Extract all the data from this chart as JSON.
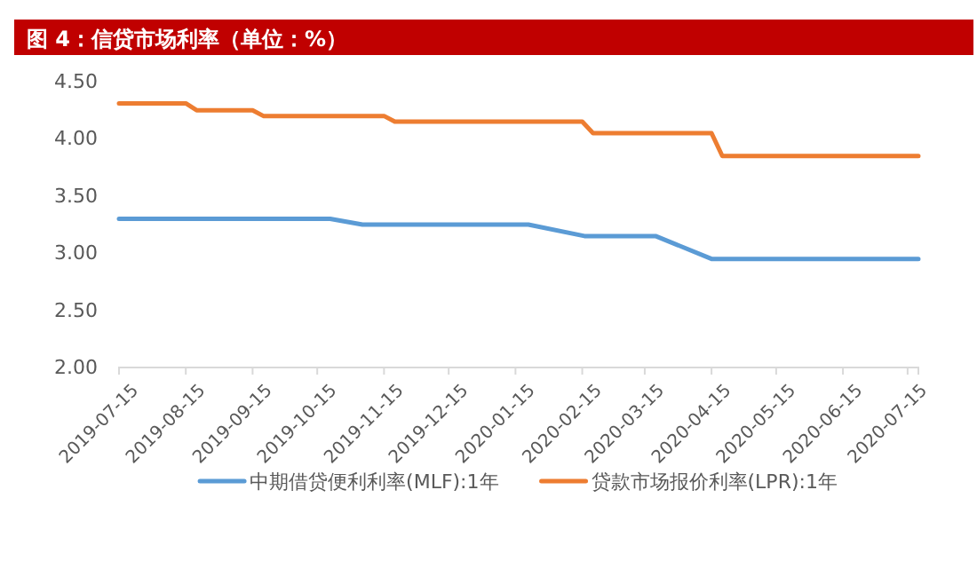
{
  "chart_data": {
    "type": "line",
    "title": "图 4：信贷市场利率（单位：%）",
    "xlim": [
      "2019-07-15",
      "2020-07-20"
    ],
    "xticks": [
      "2019-07-15",
      "2019-08-15",
      "2019-09-15",
      "2019-10-15",
      "2019-11-15",
      "2019-12-15",
      "2020-01-15",
      "2020-02-15",
      "2020-03-15",
      "2020-04-15",
      "2020-05-15",
      "2020-06-15",
      "2020-07-15"
    ],
    "ylim": [
      2,
      4.5
    ],
    "yticks": [
      {
        "value": 2,
        "label": "2.00"
      },
      {
        "value": 2.5,
        "label": "2.50"
      },
      {
        "value": 3,
        "label": "3.00"
      },
      {
        "value": 3.5,
        "label": "3.50"
      },
      {
        "value": 4,
        "label": "4.00"
      },
      {
        "value": 4.5,
        "label": "4.50"
      }
    ],
    "grid": false,
    "legend": "bottom",
    "marker": "none",
    "line_style": "solid",
    "series": [
      {
        "name": "中期借贷便利利率(MLF):1年",
        "color": "#5b9bd5",
        "x": [
          "2019-07-15",
          "2019-10-21",
          "2019-11-05",
          "2020-01-21",
          "2020-02-16",
          "2020-03-20",
          "2020-04-15",
          "2020-07-20"
        ],
        "values": [
          3.3,
          3.3,
          3.25,
          3.25,
          3.15,
          3.15,
          2.95,
          2.95
        ]
      },
      {
        "name": "贷款市场报价利率(LPR):1年",
        "color": "#ed7d31",
        "x": [
          "2019-07-15",
          "2019-08-15",
          "2019-08-20",
          "2019-09-15",
          "2019-09-20",
          "2019-11-15",
          "2019-11-20",
          "2020-02-15",
          "2020-02-20",
          "2020-04-15",
          "2020-04-20",
          "2020-07-20"
        ],
        "values": [
          4.31,
          4.31,
          4.25,
          4.25,
          4.2,
          4.2,
          4.15,
          4.15,
          4.05,
          4.05,
          3.85,
          3.85
        ]
      }
    ]
  }
}
